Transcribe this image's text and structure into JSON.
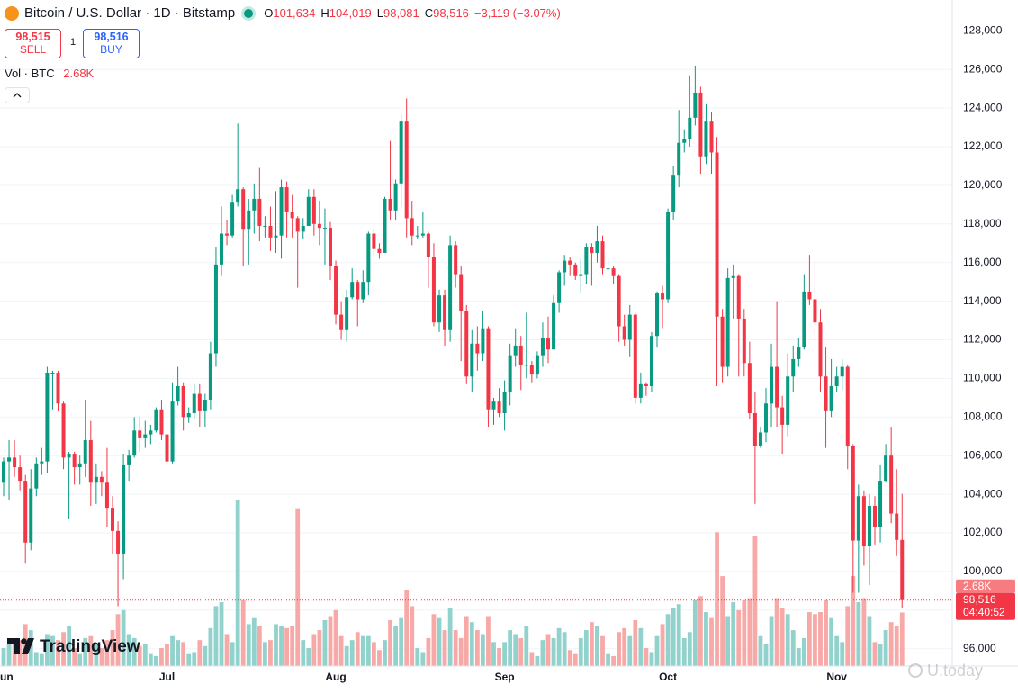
{
  "header": {
    "symbol": "Bitcoin / U.S. Dollar · 1D · Bitstamp",
    "ohlc": [
      {
        "letter": "O",
        "value": "101,634"
      },
      {
        "letter": "H",
        "value": "104,019"
      },
      {
        "letter": "L",
        "value": "98,081"
      },
      {
        "letter": "C",
        "value": "98,516"
      }
    ],
    "change": "−3,119 (−3.07%)"
  },
  "trade": {
    "sell_price": "98,515",
    "sell": "SELL",
    "quantity": "1",
    "buy_price": "98,516",
    "buy": "BUY"
  },
  "chart_data": {
    "type": "candlestick",
    "volume_title": "Vol · BTC",
    "volume_label": "2.68K",
    "last_price_label": "98,516",
    "countdown": "04:40:52",
    "up_color": "#089981",
    "down_color": "#f23645",
    "volume_up_color": "#92d2cc",
    "volume_down_color": "#f7a9a7",
    "grid": true,
    "categories": [
      "Jun",
      null,
      null,
      null,
      null,
      null,
      null,
      null,
      null,
      null,
      null,
      null,
      null,
      null,
      null,
      null,
      null,
      null,
      null,
      null,
      null,
      null,
      null,
      null,
      null,
      null,
      null,
      null,
      null,
      null,
      "Jul",
      null,
      null,
      null,
      null,
      null,
      null,
      null,
      null,
      null,
      null,
      null,
      null,
      null,
      null,
      null,
      null,
      null,
      null,
      null,
      null,
      null,
      null,
      null,
      null,
      null,
      null,
      null,
      null,
      null,
      null,
      "Aug",
      null,
      null,
      null,
      null,
      null,
      null,
      null,
      null,
      null,
      null,
      null,
      null,
      null,
      null,
      null,
      null,
      null,
      null,
      null,
      null,
      null,
      null,
      null,
      null,
      null,
      null,
      null,
      null,
      null,
      null,
      "Sep",
      null,
      null,
      null,
      null,
      null,
      null,
      null,
      null,
      null,
      null,
      null,
      null,
      null,
      null,
      null,
      null,
      null,
      null,
      null,
      null,
      null,
      null,
      null,
      null,
      null,
      null,
      null,
      null,
      null,
      "Oct",
      null,
      null,
      null,
      null,
      null,
      null,
      null,
      null,
      null,
      null,
      null,
      null,
      null,
      null,
      null,
      null,
      null,
      null,
      null,
      null,
      null,
      null,
      null,
      null,
      null,
      null,
      null,
      null,
      null,
      null,
      "Nov",
      null,
      null,
      null,
      null,
      null,
      null,
      null,
      null,
      null,
      null,
      null,
      null
    ],
    "open": [
      104600,
      105700,
      105900,
      105400,
      104700,
      101500,
      104300,
      105600,
      105700,
      110300,
      110300,
      108700,
      105900,
      106100,
      105400,
      105600,
      106800,
      104600,
      104900,
      104600,
      103300,
      102100,
      100900,
      105500,
      106000,
      107300,
      106900,
      107100,
      107300,
      108400,
      107100,
      105700,
      108800,
      109600,
      108000,
      108200,
      109200,
      108300,
      108900,
      111300,
      115900,
      117500,
      117400,
      119100,
      119800,
      117700,
      118700,
      119300,
      117900,
      117900,
      117300,
      117400,
      119900,
      118600,
      118300,
      117600,
      117900,
      119400,
      118000,
      117800,
      117800,
      115800,
      113300,
      112500,
      114200,
      115000,
      114100,
      115000,
      117500,
      116700,
      116500,
      119300,
      118700,
      120100,
      123300,
      118300,
      117400,
      117400,
      117500,
      116300,
      112900,
      114300,
      112500,
      116900,
      115400,
      113500,
      110100,
      111800,
      111300,
      112600,
      108400,
      108800,
      108200,
      109300,
      111200,
      111700,
      110700,
      110700,
      110200,
      111200,
      112100,
      111500,
      113900,
      115500,
      116100,
      115900,
      115300,
      115400,
      116800,
      116500,
      117100,
      115700,
      115700,
      115300,
      112700,
      112000,
      113300,
      109000,
      109700,
      109600,
      112200,
      114400,
      114100,
      118600,
      120500,
      122200,
      122400,
      123500,
      124800,
      121500,
      123300,
      121700,
      113200,
      110600,
      115200,
      115300,
      113100,
      110800,
      108200,
      106500,
      107200,
      108700,
      110600,
      108500,
      107600,
      110100,
      111000,
      111600,
      114500,
      114100,
      112900,
      110100,
      108300,
      109600,
      110100,
      110600,
      106500,
      101600,
      103900,
      101300,
      103400,
      102300,
      104700,
      106000,
      103000,
      101634
    ],
    "high": [
      105900,
      106800,
      106800,
      106000,
      105000,
      105300,
      105900,
      106400,
      110600,
      110400,
      110400,
      108800,
      106200,
      106200,
      106000,
      108900,
      107800,
      105600,
      105200,
      106400,
      103900,
      102600,
      106100,
      106300,
      108000,
      108000,
      107800,
      107600,
      108500,
      108900,
      107500,
      109800,
      110600,
      109800,
      108500,
      109700,
      109700,
      109200,
      111900,
      116800,
      118900,
      118200,
      119500,
      123200,
      119900,
      119300,
      120100,
      120900,
      118400,
      118900,
      119700,
      120300,
      120200,
      119500,
      118400,
      118300,
      119800,
      119800,
      119200,
      118800,
      118100,
      116100,
      114000,
      114600,
      115700,
      115100,
      115600,
      117600,
      117700,
      117000,
      119400,
      122300,
      120300,
      123700,
      124500,
      119200,
      117900,
      118600,
      117600,
      117000,
      114600,
      114600,
      117400,
      117100,
      115800,
      113800,
      112500,
      112700,
      113500,
      112700,
      109000,
      109500,
      109900,
      111800,
      112600,
      112200,
      113400,
      110900,
      111400,
      112900,
      113200,
      114300,
      115600,
      116400,
      116300,
      116000,
      116200,
      117000,
      117000,
      117900,
      117400,
      116200,
      115800,
      115400,
      113300,
      113800,
      113400,
      110300,
      109800,
      112400,
      114500,
      114800,
      118800,
      121000,
      123900,
      122900,
      125700,
      126200,
      125100,
      124200,
      123800,
      122500,
      113600,
      115700,
      115900,
      115400,
      113600,
      111900,
      109300,
      107500,
      109500,
      111800,
      114000,
      109100,
      111300,
      111700,
      112100,
      115400,
      116400,
      116100,
      113600,
      111600,
      111000,
      110600,
      111000,
      110700,
      106600,
      104500,
      104200,
      104000,
      103900,
      105500,
      106600,
      107500,
      105300,
      104019
    ],
    "low": [
      103900,
      103700,
      104900,
      104200,
      100400,
      101100,
      103900,
      105000,
      105100,
      108400,
      108300,
      105300,
      102700,
      104500,
      104500,
      104900,
      103400,
      103500,
      103900,
      102300,
      100900,
      98200,
      99600,
      104700,
      105900,
      106200,
      106400,
      106600,
      107200,
      106800,
      105300,
      105600,
      108600,
      107300,
      107700,
      107900,
      107500,
      107500,
      108400,
      110600,
      115300,
      116900,
      117300,
      118900,
      115800,
      115900,
      117500,
      117100,
      117300,
      116600,
      116500,
      116200,
      117300,
      117300,
      114700,
      117200,
      117900,
      117400,
      116900,
      115900,
      115100,
      112800,
      112000,
      111900,
      114100,
      112700,
      113900,
      114300,
      116300,
      116200,
      116500,
      118200,
      118200,
      118900,
      117300,
      116900,
      117200,
      117300,
      114700,
      112700,
      112400,
      111700,
      111900,
      114700,
      110900,
      109700,
      109300,
      110400,
      110900,
      107500,
      107600,
      108000,
      107300,
      108600,
      110600,
      109400,
      110000,
      109800,
      110000,
      110600,
      110800,
      111600,
      113400,
      114800,
      115300,
      115100,
      114400,
      114900,
      114800,
      116000,
      115400,
      115500,
      114900,
      111900,
      111700,
      111100,
      108700,
      108700,
      109100,
      109300,
      111600,
      112600,
      113900,
      118200,
      119900,
      121700,
      122000,
      123100,
      120600,
      121100,
      120600,
      109600,
      109800,
      110100,
      113100,
      110100,
      110100,
      107900,
      103500,
      106400,
      106700,
      107500,
      107500,
      106100,
      107000,
      109300,
      110600,
      111500,
      113800,
      111900,
      109300,
      106400,
      108000,
      109300,
      109400,
      105300,
      98900,
      98900,
      100300,
      99300,
      101400,
      101500,
      104600,
      102500,
      100800,
      98081
    ],
    "close": [
      105700,
      105900,
      105400,
      104700,
      101500,
      104300,
      105600,
      105700,
      110300,
      110300,
      108700,
      105900,
      106100,
      105400,
      105600,
      106800,
      104600,
      104900,
      104600,
      103300,
      102100,
      100900,
      105500,
      106000,
      107300,
      106900,
      107100,
      107300,
      108400,
      107100,
      105700,
      108800,
      109600,
      108000,
      108200,
      109200,
      108300,
      108900,
      111300,
      115900,
      117500,
      117400,
      119100,
      119800,
      117700,
      118700,
      119300,
      117900,
      117900,
      117300,
      117400,
      119900,
      118600,
      118300,
      117600,
      117900,
      119400,
      118000,
      117800,
      117800,
      115800,
      113300,
      112500,
      114200,
      115000,
      114100,
      115000,
      117500,
      116700,
      116500,
      119300,
      118700,
      120100,
      123300,
      118300,
      117400,
      117400,
      117500,
      116300,
      112900,
      114300,
      112500,
      116900,
      115400,
      113500,
      110100,
      111800,
      111300,
      112600,
      108400,
      108800,
      108200,
      109300,
      111200,
      111700,
      110700,
      110700,
      110200,
      111200,
      112100,
      111500,
      113900,
      115500,
      116100,
      115900,
      115300,
      115400,
      116800,
      116500,
      117100,
      115700,
      115700,
      115300,
      112700,
      112000,
      113300,
      109000,
      109700,
      109600,
      112200,
      114400,
      114100,
      118600,
      120500,
      122200,
      122400,
      123500,
      124800,
      121500,
      123300,
      121700,
      113200,
      110600,
      115200,
      115300,
      113100,
      110800,
      108200,
      106500,
      107200,
      108700,
      110600,
      108500,
      107600,
      110100,
      111000,
      111600,
      114500,
      114100,
      112900,
      110100,
      108300,
      109600,
      110100,
      110600,
      106500,
      101600,
      103900,
      101300,
      103400,
      102300,
      104700,
      106000,
      103000,
      101634,
      98516
    ],
    "volume": [
      900,
      1100,
      1200,
      1300,
      2100,
      1800,
      700,
      600,
      1600,
      1500,
      1300,
      1700,
      2000,
      900,
      600,
      1400,
      1500,
      1100,
      900,
      1300,
      1800,
      2600,
      2800,
      1600,
      1400,
      1000,
      1100,
      600,
      500,
      900,
      1100,
      1500,
      1300,
      1200,
      600,
      700,
      1300,
      1000,
      1900,
      3000,
      3200,
      1600,
      1200,
      8300,
      3300,
      2100,
      2400,
      2000,
      1200,
      1300,
      2100,
      2000,
      1900,
      2000,
      7900,
      1300,
      900,
      1600,
      1800,
      2300,
      2500,
      2800,
      1500,
      1000,
      1300,
      1700,
      1500,
      1500,
      1200,
      800,
      1300,
      2300,
      2000,
      2400,
      3800,
      3000,
      900,
      700,
      1400,
      2600,
      2400,
      1800,
      2900,
      1800,
      1400,
      2500,
      2200,
      1800,
      1600,
      2500,
      1200,
      900,
      1200,
      1800,
      1600,
      1400,
      2000,
      700,
      500,
      1300,
      1600,
      1400,
      1900,
      1700,
      800,
      600,
      1400,
      1800,
      2200,
      2000,
      1500,
      600,
      500,
      1700,
      1900,
      1500,
      2300,
      1900,
      900,
      700,
      1500,
      2100,
      2600,
      2900,
      3100,
      1400,
      1700,
      3300,
      3500,
      2700,
      2400,
      6700,
      4500,
      2500,
      3200,
      2800,
      3300,
      3400,
      6500,
      1500,
      1100,
      2500,
      3400,
      2900,
      2600,
      1800,
      900,
      1400,
      2700,
      2600,
      2700,
      3300,
      2400,
      1500,
      1200,
      3000,
      4500,
      3200,
      3400,
      2500,
      1200,
      1100,
      1800,
      2200,
      2000,
      2680
    ],
    "ylim": [
      95100,
      129600
    ],
    "yticks": [
      {
        "value": 96000,
        "label": "96,000"
      },
      {
        "value": 98000,
        "label": "98,000"
      },
      {
        "value": 100000,
        "label": "100,000"
      },
      {
        "value": 102000,
        "label": "102,000"
      },
      {
        "value": 104000,
        "label": "104,000"
      },
      {
        "value": 106000,
        "label": "106,000"
      },
      {
        "value": 108000,
        "label": "108,000"
      },
      {
        "value": 110000,
        "label": "110,000"
      },
      {
        "value": 112000,
        "label": "112,000"
      },
      {
        "value": 114000,
        "label": "114,000"
      },
      {
        "value": 116000,
        "label": "116,000"
      },
      {
        "value": 118000,
        "label": "118,000"
      },
      {
        "value": 120000,
        "label": "120,000"
      },
      {
        "value": 122000,
        "label": "122,000"
      },
      {
        "value": 124000,
        "label": "124,000"
      },
      {
        "value": 126000,
        "label": "126,000"
      },
      {
        "value": 128000,
        "label": "128,000"
      }
    ]
  },
  "branding": "TradingView",
  "watermark": "U.today"
}
